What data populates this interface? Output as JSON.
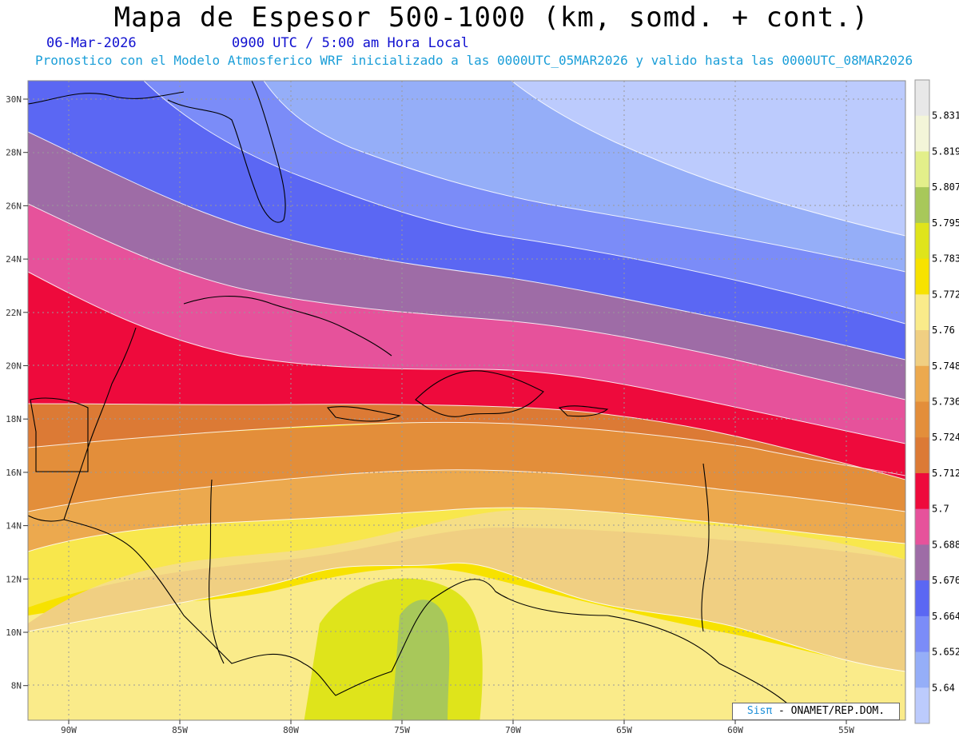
{
  "header": {
    "title": "Mapa de Espesor 500-1000 (km, somd. + cont.)",
    "date": "06-Mar-2026",
    "time": "0900 UTC / 5:00 am Hora Local",
    "description": "Pronostico con el Modelo Atmosferico WRF inicializado a las 0000UTC_05MAR2026 y valido hasta las  0000UTC_08MAR2026"
  },
  "axes": {
    "lon_labels": [
      "90W",
      "85W",
      "80W",
      "75W",
      "70W",
      "65W",
      "60W",
      "55W"
    ],
    "lat_labels": [
      "30N",
      "28N",
      "26N",
      "24N",
      "22N",
      "20N",
      "18N",
      "16N",
      "14N",
      "12N",
      "10N",
      "8N"
    ]
  },
  "colorbar": {
    "labels": [
      "5.831",
      "5.819",
      "5.807",
      "5.795",
      "5.783",
      "5.772",
      "5.76",
      "5.748",
      "5.736",
      "5.724",
      "5.712",
      "5.7",
      "5.688",
      "5.676",
      "5.664",
      "5.652",
      "5.64"
    ],
    "colors": [
      "#e8e8e8",
      "#f3f5d8",
      "#e3ef8a",
      "#a8c85a",
      "#dfe41b",
      "#f7e200",
      "#faeb8a",
      "#f0cf82",
      "#eca94e",
      "#e38e3a",
      "#dc7a35",
      "#ee0a3c",
      "#e6529b",
      "#9e6ca6",
      "#5b67f3",
      "#7b8cf8",
      "#95aef8",
      "#bccbfd"
    ]
  },
  "credit": {
    "sis": "Sisπ",
    "org": " - ONAMET/REP.DOM."
  }
}
